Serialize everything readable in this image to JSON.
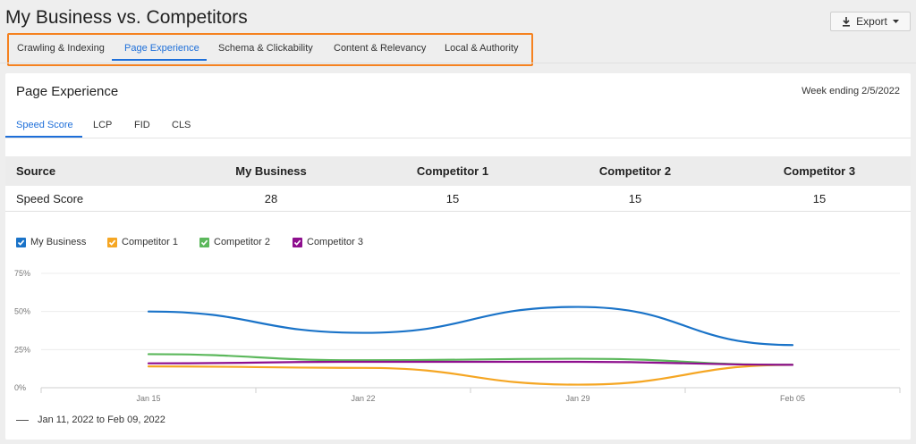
{
  "page": {
    "title": "My Business vs. Competitors",
    "export_label": "Export"
  },
  "top_tabs": [
    {
      "label": "Crawling & Indexing"
    },
    {
      "label": "Page Experience",
      "active": true
    },
    {
      "label": "Schema & Clickability"
    },
    {
      "label": "Content & Relevancy"
    },
    {
      "label": "Local & Authority"
    }
  ],
  "card": {
    "title": "Page Experience",
    "week": "Week ending 2/5/2022",
    "sub_tabs": [
      {
        "label": "Speed Score",
        "active": true
      },
      {
        "label": "LCP"
      },
      {
        "label": "FID"
      },
      {
        "label": "CLS"
      }
    ]
  },
  "table": {
    "headers": [
      "Source",
      "My Business",
      "Competitor 1",
      "Competitor 2",
      "Competitor 3"
    ],
    "row": {
      "label": "Speed Score",
      "values": [
        "28",
        "15",
        "15",
        "15"
      ]
    }
  },
  "legend": [
    {
      "name": "My Business",
      "color": "#1a73c8"
    },
    {
      "name": "Competitor 1",
      "color": "#f5a623"
    },
    {
      "name": "Competitor 2",
      "color": "#5cb85c"
    },
    {
      "name": "Competitor 3",
      "color": "#8e0f8e"
    }
  ],
  "date_range": "Jan 11, 2022 to Feb 09, 2022",
  "chart_data": {
    "type": "line",
    "x": [
      "Jan 11",
      "Jan 15",
      "Jan 22",
      "Jan 29",
      "Feb 05"
    ],
    "x_ticks": [
      "Jan 15",
      "Jan 22",
      "Jan 29",
      "Feb 05"
    ],
    "y_ticks": [
      "0%",
      "25%",
      "50%",
      "75%"
    ],
    "ylim": [
      0,
      75
    ],
    "grid": true,
    "legend_position": "top-left",
    "series": [
      {
        "name": "My Business",
        "color": "#1a73c8",
        "points": [
          [
            "Jan 15",
            50
          ],
          [
            "Jan 22",
            36
          ],
          [
            "Jan 29",
            53
          ],
          [
            "Feb 05",
            28
          ]
        ]
      },
      {
        "name": "Competitor 1",
        "color": "#f5a623",
        "points": [
          [
            "Jan 15",
            14
          ],
          [
            "Jan 22",
            13
          ],
          [
            "Jan 29",
            2
          ],
          [
            "Feb 05",
            15
          ]
        ]
      },
      {
        "name": "Competitor 2",
        "color": "#5cb85c",
        "points": [
          [
            "Jan 15",
            22
          ],
          [
            "Jan 22",
            18
          ],
          [
            "Jan 29",
            19
          ],
          [
            "Feb 05",
            15
          ]
        ]
      },
      {
        "name": "Competitor 3",
        "color": "#8e0f8e",
        "points": [
          [
            "Jan 15",
            16
          ],
          [
            "Jan 22",
            17
          ],
          [
            "Jan 29",
            17
          ],
          [
            "Feb 05",
            15
          ]
        ]
      }
    ]
  }
}
